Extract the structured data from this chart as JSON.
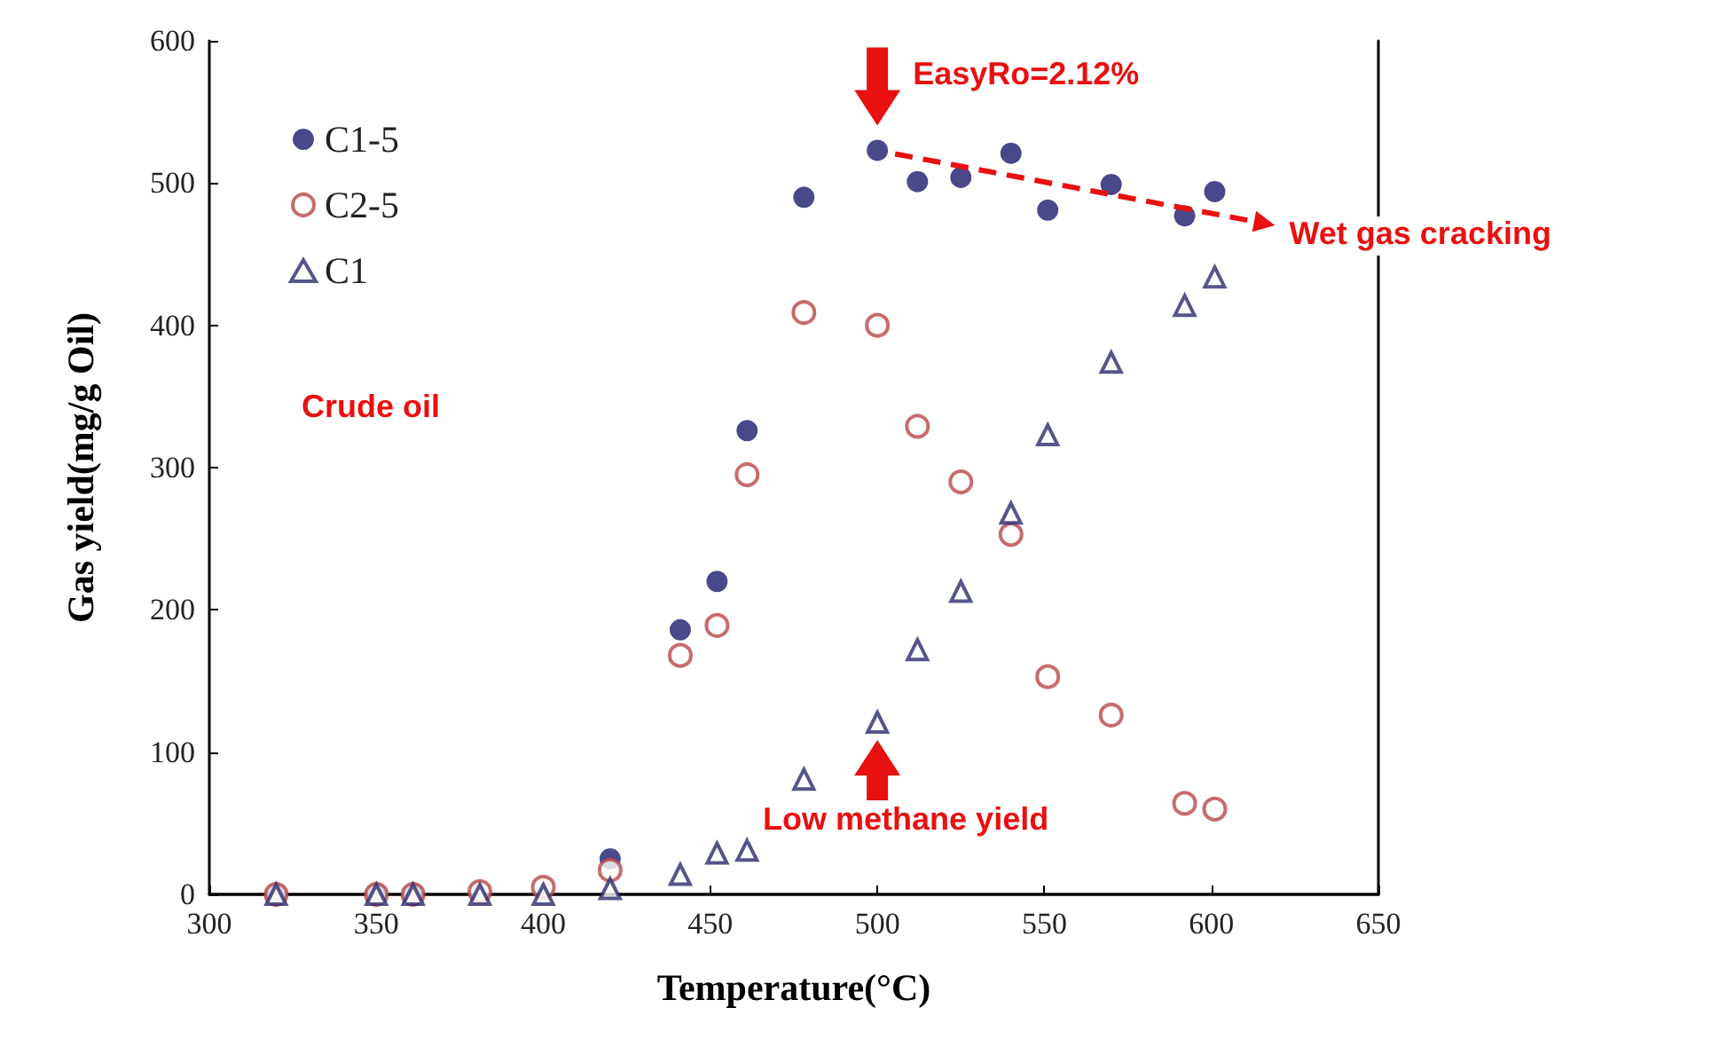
{
  "chart_data": {
    "type": "scatter",
    "xlabel": "Temperature(°C)",
    "ylabel": "Gas yield(mg/g Oil)",
    "xlim": [
      300,
      650
    ],
    "xticks": [
      300,
      350,
      400,
      450,
      500,
      550,
      600,
      650
    ],
    "ylim": [
      0,
      600
    ],
    "yticks": [
      0,
      100,
      200,
      300,
      400,
      500,
      600
    ],
    "grid": false,
    "legend": "top left",
    "series": [
      {
        "name": "C1-5",
        "color": "#1c1a6b",
        "marker": "circle",
        "x": [
          320,
          350,
          361,
          381,
          400,
          420,
          441,
          452,
          461,
          478,
          500,
          512,
          525,
          540,
          551,
          570,
          592,
          601
        ],
        "values": [
          0,
          0,
          0,
          null,
          null,
          25,
          186,
          220,
          326,
          490,
          523,
          501,
          504,
          521,
          481,
          499,
          477,
          494
        ]
      },
      {
        "name": "C2-5",
        "color": "#b8474a",
        "marker": "circle-open",
        "x": [
          320,
          350,
          361,
          381,
          400,
          420,
          441,
          452,
          461,
          478,
          500,
          512,
          525,
          540,
          551,
          570,
          592,
          601
        ],
        "values": [
          0,
          0,
          0,
          2,
          5,
          17,
          168,
          189,
          295,
          409,
          400,
          329,
          290,
          253,
          153,
          126,
          64,
          60
        ]
      },
      {
        "name": "C1",
        "color": "#2a2a6e",
        "marker": "triangle-open",
        "x": [
          320,
          350,
          361,
          381,
          400,
          420,
          441,
          452,
          461,
          478,
          500,
          512,
          525,
          540,
          551,
          570,
          592,
          601
        ],
        "values": [
          0,
          0,
          0,
          0,
          0,
          4,
          14,
          29,
          31,
          81,
          121,
          172,
          213,
          268,
          323,
          374,
          414,
          434
        ]
      }
    ],
    "annotations": [
      {
        "text": "EasyRo=2.12%",
        "x": 500,
        "y": 523
      },
      "Wet gas cracking",
      {
        "text": "Low methane yield",
        "x": 500,
        "y": 121
      },
      "Crude oil"
    ]
  }
}
